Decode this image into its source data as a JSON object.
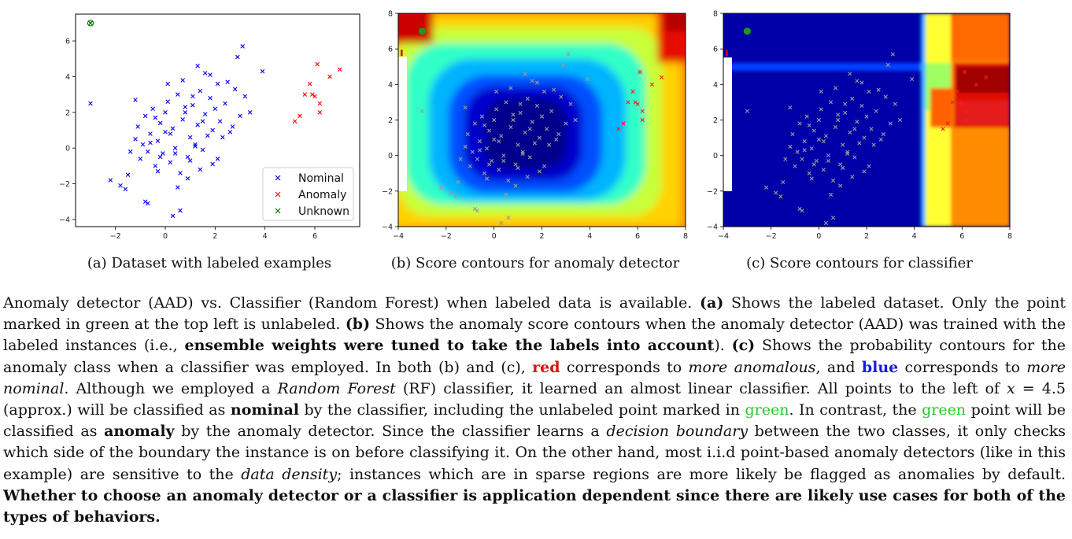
{
  "chart_data": [
    {
      "type": "scatter",
      "title": "",
      "xlim": [
        -3.6,
        7.8
      ],
      "ylim": [
        -4.4,
        7.5
      ],
      "xticks": [
        "−2",
        "0",
        "2",
        "4",
        "6"
      ],
      "yticks": [
        "−4",
        "−2",
        "0",
        "2",
        "4",
        "6"
      ],
      "legend_position": "bottom-right",
      "series": [
        {
          "name": "Nominal",
          "color": "#0000ff",
          "marker": "x",
          "x": [
            -2.2,
            -1.8,
            -1.5,
            -1.4,
            -1.2,
            -1.1,
            -1.0,
            -0.9,
            -0.8,
            -0.7,
            -0.6,
            -0.5,
            -0.4,
            -0.3,
            -0.2,
            -0.1,
            0.0,
            0.1,
            0.2,
            0.3,
            0.4,
            0.5,
            0.6,
            0.7,
            0.8,
            0.9,
            1.0,
            1.1,
            1.2,
            1.3,
            1.4,
            1.5,
            1.6,
            1.7,
            1.8,
            1.9,
            2.0,
            2.1,
            2.2,
            2.4,
            2.6,
            2.8,
            3.0,
            3.2,
            3.4,
            -1.6,
            -0.8,
            0.1,
            0.5,
            1.3,
            2.1,
            2.9,
            -0.4,
            0.3,
            1.8,
            -1.2,
            0.9,
            2.5,
            0.4,
            1.5,
            -0.6,
            1.1,
            0.7,
            2.3,
            1.9,
            0.0,
            -0.2,
            3.1,
            1.4,
            -3.0,
            -0.7,
            0.6,
            0.2,
            1.0,
            1.6,
            2.7,
            3.9,
            0.8,
            -0.3,
            1.2
          ],
          "y": [
            -1.8,
            -2.1,
            -1.5,
            -0.2,
            0.5,
            1.2,
            -0.6,
            0.2,
            1.8,
            -0.2,
            0.8,
            2.2,
            -1.0,
            0.4,
            1.4,
            -0.3,
            0.9,
            2.6,
            -0.8,
            1.1,
            0.0,
            3.0,
            -1.4,
            1.6,
            2.0,
            -0.5,
            0.6,
            2.4,
            0.1,
            1.3,
            3.2,
            -0.1,
            1.9,
            0.7,
            2.8,
            1.0,
            2.2,
            3.6,
            1.5,
            2.5,
            0.9,
            3.3,
            1.8,
            2.9,
            2.0,
            -2.3,
            -3.0,
            3.6,
            -2.2,
            4.6,
            -0.6,
            5.1,
            1.7,
            -3.8,
            4.1,
            2.7,
            -1.7,
            3.7,
            -0.3,
            1.5,
            0.3,
            2.9,
            3.8,
            0.6,
            -0.9,
            2.0,
            -0.5,
            5.7,
            -1.2,
            2.5,
            -3.1,
            -3.5,
            0.8,
            -0.7,
            4.2,
            1.2,
            4.3,
            2.3,
            -1.3,
            0.2
          ]
        },
        {
          "name": "Anomaly",
          "color": "#ff0000",
          "marker": "x",
          "x": [
            5.2,
            5.4,
            5.6,
            5.8,
            5.9,
            6.0,
            6.1,
            6.2,
            6.2,
            6.6,
            7.0
          ],
          "y": [
            1.5,
            1.8,
            3.0,
            3.6,
            3.0,
            2.9,
            4.7,
            2.5,
            2.0,
            4.0,
            4.4
          ]
        },
        {
          "name": "Unknown",
          "color": "#007000",
          "marker": "x",
          "x": [
            -3.0
          ],
          "y": [
            7.0
          ]
        }
      ]
    },
    {
      "type": "heatmap",
      "title": "",
      "xlim": [
        -4,
        8
      ],
      "ylim": [
        -4,
        8
      ],
      "xticks": [
        "−4",
        "−2",
        "0",
        "2",
        "4",
        "6",
        "8"
      ],
      "yticks": [
        "−4",
        "−2",
        "0",
        "2",
        "4",
        "6",
        "8"
      ],
      "colormap": "jet (blue = more nominal, red = more anomalous)"
    },
    {
      "type": "heatmap",
      "title": "",
      "xlim": [
        -4,
        8
      ],
      "ylim": [
        -4,
        8
      ],
      "xticks": [
        "−4",
        "−2",
        "0",
        "2",
        "4",
        "6",
        "8"
      ],
      "yticks": [
        "−4",
        "−2",
        "0",
        "2",
        "4",
        "6",
        "8"
      ],
      "colormap": "jet (blue = more nominal, red = more anomalous)"
    }
  ],
  "captions": {
    "a": "(a) Dataset with labeled examples",
    "b": "(b) Score contours for anomaly detector",
    "c": "(c) Score contours for classifier"
  },
  "paragraph": {
    "p01": "Anomaly detector (AAD) vs. Classifier (Random Forest) when labeled data is available. ",
    "p02": "(a)",
    "p03": " Shows the labeled dataset. Only the point marked in green at the top left is unlabeled. ",
    "p04": "(b)",
    "p05": " Shows the anomaly score contours when the anomaly detector (AAD) was trained with the labeled instances (i.e., ",
    "p06": "ensemble weights were tuned to take the labels into account",
    "p07": "). ",
    "p08": "(c)",
    "p09": " Shows the probability contours for the anomaly class when a classifier was employed. In both (b) and (c), ",
    "p10": "red",
    "p11": " corresponds to ",
    "p12": "more anomalous",
    "p13": ", and ",
    "p14": "blue",
    "p15": " corresponds to ",
    "p16": "more nominal",
    "p17": ". Although we employed a ",
    "p18": "Random Forest",
    "p19": " (RF) classifier, it learned an almost linear classifier. All points to the left of ",
    "p20": "x",
    "p21": " = 4.5 (approx.) will be classified as ",
    "p22": "nominal",
    "p23": " by the classifier, including the unlabeled point marked in ",
    "p24": "green",
    "p25": ". In contrast, the ",
    "p26": "green",
    "p27": " point will be classified as ",
    "p28": "anomaly",
    "p29": " by the anomaly detector. Since the classifier learns a ",
    "p30": "decision boundary",
    "p31": " between the two classes, it only checks which side of the boundary the instance is on before classifying it. On the other hand, most i.i.d point-based anomaly detectors (like in this example) are sensitive to the ",
    "p32": "data density",
    "p33": "; instances which are in sparse regions are more likely be flagged as anomalies by default. ",
    "p34": "Whether to choose an anomaly detector or a classifier is application dependent since there are likely use cases for both of the types of behaviors."
  }
}
